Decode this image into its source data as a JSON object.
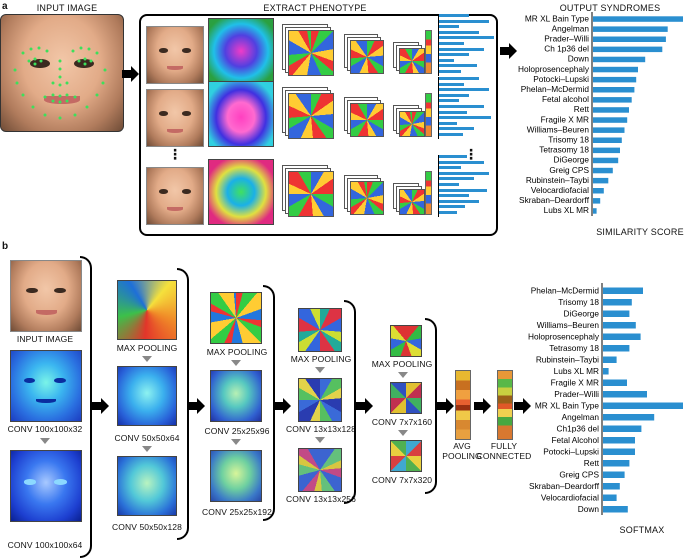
{
  "panel_a": {
    "label": "a",
    "titles": {
      "input": "INPUT IMAGE",
      "extract": "EXTRACT PHENOTYPE",
      "output": "OUTPUT SYNDROMES"
    },
    "xlabel": "SIMILARITY SCORE",
    "ellipsis": "⋮"
  },
  "panel_b": {
    "label": "b",
    "captions": {
      "input": "INPUT IMAGE",
      "conv1": "CONV 100x100x32",
      "conv2": "CONV 100x100x64",
      "pool1": "MAX POOLING",
      "conv3": "CONV 50x50x64",
      "conv4": "CONV 50x50x128",
      "pool2": "MAX POOLING",
      "conv5": "CONV 25x25x96",
      "conv6": "CONV 25x25x192",
      "pool3": "MAX POOLING",
      "conv7": "CONV 13x13x128",
      "conv8": "CONV 13x13x256",
      "pool4": "MAX POOLING",
      "conv9": "CONV 7x7x160",
      "conv10": "CONV 7x7x320",
      "avg1": "AVG",
      "avg2": "POOLING",
      "fc1": "FULLY",
      "fc2": "CONNECTED"
    },
    "xlabel": "SOFTMAX"
  },
  "colors": {
    "bar": "#2a8fd0",
    "arrow": "#888888",
    "border": "#000000"
  },
  "chart_data": [
    {
      "type": "bar",
      "orientation": "horizontal",
      "title": "OUTPUT SYNDROMES",
      "xlabel": "SIMILARITY SCORE",
      "categories": [
        "MR XL Bain Type",
        "Angelman",
        "Prader–Willi",
        "Ch 1p36 del",
        "Down",
        "Holoprosencephaly",
        "Potocki–Lupski",
        "Phelan–McDermid",
        "Fetal alcohol",
        "Rett",
        "Fragile X MR",
        "Williams–Beuren",
        "Trisomy 18",
        "Tetrasomy 18",
        "DiGeorge",
        "Greig CPS",
        "Rubinstein–Taybi",
        "Velocardiofacial",
        "Skraban–Deardorff",
        "Lubs XL MR"
      ],
      "values": [
        1.0,
        0.83,
        0.81,
        0.77,
        0.58,
        0.5,
        0.48,
        0.46,
        0.43,
        0.4,
        0.38,
        0.35,
        0.32,
        0.3,
        0.28,
        0.22,
        0.17,
        0.12,
        0.08,
        0.04
      ]
    },
    {
      "type": "bar",
      "orientation": "horizontal",
      "xlabel": "SOFTMAX",
      "categories": [
        "Phelan–McDermid",
        "Trisomy 18",
        "DiGeorge",
        "Williams–Beuren",
        "Holoprosencephaly",
        "Tetrasomy 18",
        "Rubinstein–Taybi",
        "Lubs XL MR",
        "Fragile X MR",
        "Prader–Willi",
        "MR XL Bain Type",
        "Angelman",
        "Ch1p36 del",
        "Fetal Alcohol",
        "Potocki–Lupski",
        "Rett",
        "Greig CPS",
        "Skraban–Deardorff",
        "Velocardiofacial",
        "Down"
      ],
      "values": [
        0.5,
        0.36,
        0.33,
        0.41,
        0.47,
        0.33,
        0.17,
        0.07,
        0.3,
        0.55,
        1.0,
        0.64,
        0.48,
        0.4,
        0.4,
        0.33,
        0.27,
        0.21,
        0.17,
        0.31
      ]
    }
  ]
}
